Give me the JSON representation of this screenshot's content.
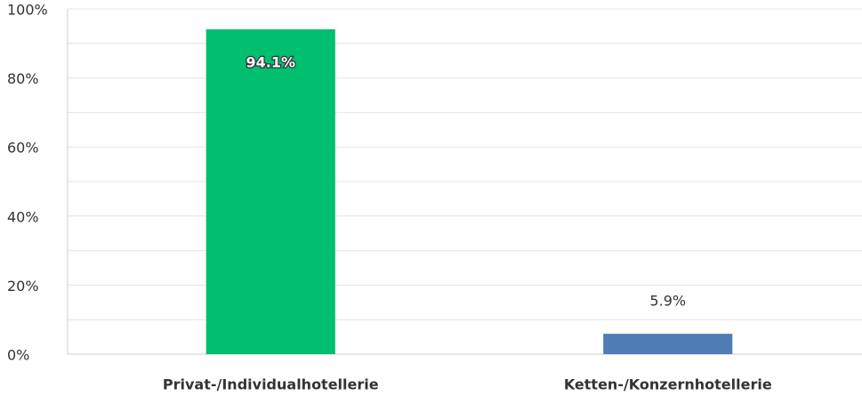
{
  "chart_data": {
    "type": "bar",
    "categories": [
      "Privat-/Individualhotellerie",
      "Ketten-/Konzernhotellerie"
    ],
    "values": [
      94.1,
      5.9
    ],
    "value_labels": [
      "94.1%",
      "5.9%"
    ],
    "colors": [
      "#00bf6f",
      "#507cb6"
    ],
    "ylim": [
      0,
      100
    ],
    "yticks": [
      {
        "value": 0,
        "label": "0%"
      },
      {
        "value": 20,
        "label": "20%"
      },
      {
        "value": 40,
        "label": "40%"
      },
      {
        "value": 60,
        "label": "60%"
      },
      {
        "value": 80,
        "label": "80%"
      },
      {
        "value": 100,
        "label": "100%"
      }
    ],
    "minor_yticks": [
      10,
      30,
      50,
      70,
      90
    ],
    "grid": true
  }
}
